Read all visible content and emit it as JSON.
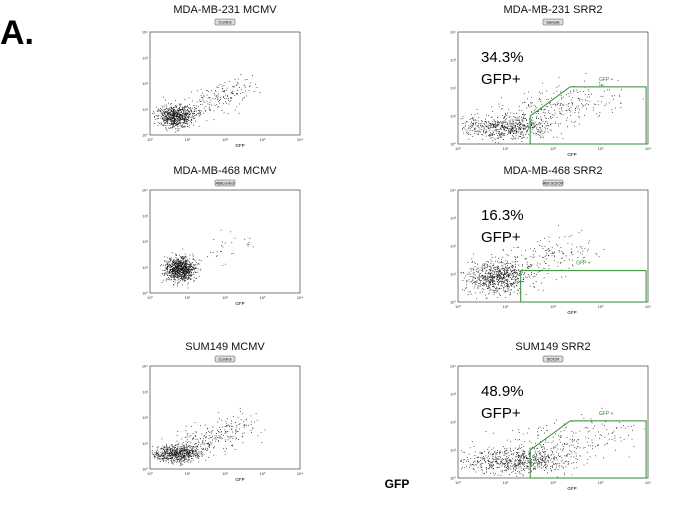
{
  "panel_label": "A.",
  "plots": [
    {
      "title": "MDA-MB-231 MCMV",
      "tag": "Control",
      "axis_label": "GFP"
    },
    {
      "title": "MDA-MB-231 SRR2",
      "tag": "Sample",
      "percent": "34.3%",
      "population": "GFP+",
      "gate_label": "GFP +",
      "axis_label": "GFP"
    },
    {
      "title": "MDA-MB-468 MCMV",
      "tag": "468control",
      "axis_label": "GFP"
    },
    {
      "title": "MDA-MB-468 SRR2",
      "tag": "468 SCICR",
      "percent": "16.3%",
      "population": "GFP+",
      "gate_label": "GFP +",
      "axis_label": "GFP"
    },
    {
      "title": "SUM149 MCMV",
      "tag": "Control",
      "axis_label": "GFP"
    },
    {
      "title": "SUM149 SRR2",
      "tag": "SCICR",
      "percent": "48.9%",
      "population": "GFP+",
      "gate_label": "GFP +",
      "axis_label": "GFP"
    }
  ],
  "tick_labels": [
    "10⁰",
    "10¹",
    "10²",
    "10³",
    "10⁴"
  ],
  "footer_label": "GFP"
}
